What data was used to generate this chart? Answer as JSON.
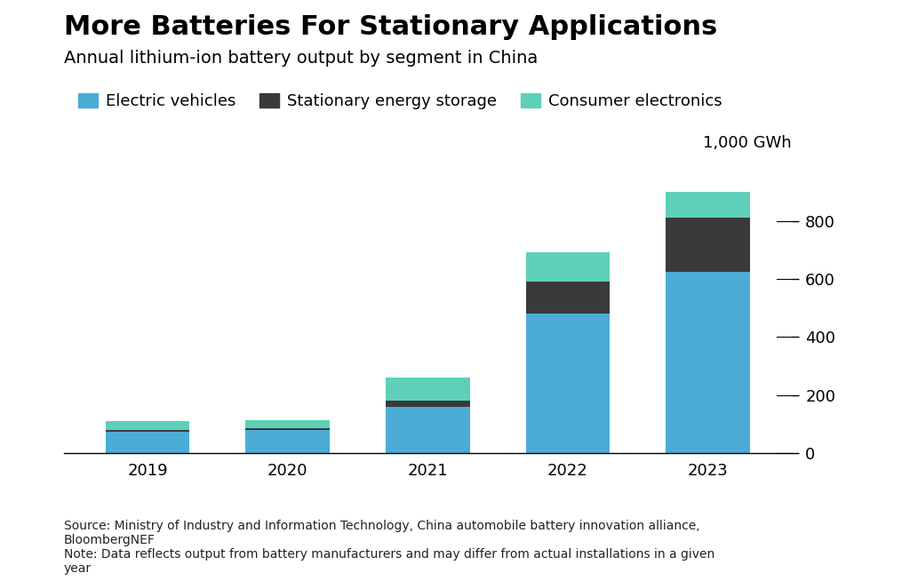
{
  "title": "More Batteries For Stationary Applications",
  "subtitle": "Annual lithium-ion battery output by segment in China",
  "years": [
    "2019",
    "2020",
    "2021",
    "2022",
    "2023"
  ],
  "ev_values": [
    75,
    80,
    160,
    480,
    625
  ],
  "storage_values": [
    5,
    5,
    22,
    110,
    185
  ],
  "consumer_values": [
    30,
    30,
    78,
    100,
    90
  ],
  "ev_color": "#4BACD6",
  "storage_color": "#3A3A3A",
  "consumer_color": "#5ECFB8",
  "ylabel": "1,000 GWh",
  "yticks": [
    0,
    200,
    400,
    600,
    800
  ],
  "ylim": [
    0,
    1000
  ],
  "legend_labels": [
    "Electric vehicles",
    "Stationary energy storage",
    "Consumer electronics"
  ],
  "source_text": "Source: Ministry of Industry and Information Technology, China automobile battery innovation alliance,\nBloombergNEF\nNote: Data reflects output from battery manufacturers and may differ from actual installations in a given\nyear",
  "background_color": "#ffffff",
  "title_fontsize": 22,
  "subtitle_fontsize": 14,
  "legend_fontsize": 13,
  "axis_fontsize": 13,
  "source_fontsize": 10
}
